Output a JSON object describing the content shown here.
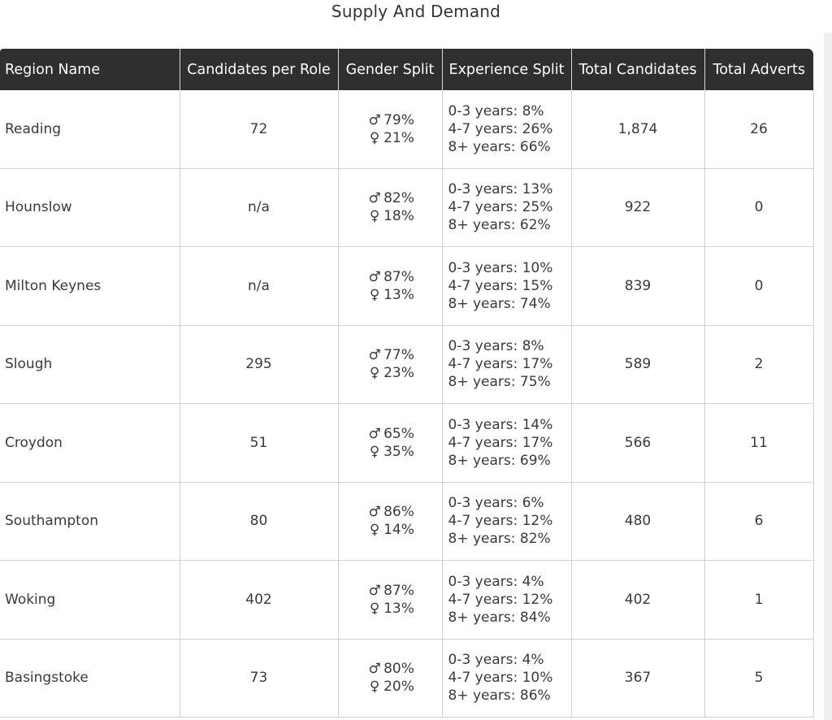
{
  "title": "Supply And Demand",
  "table": {
    "headers": [
      "Region Name",
      "Candidates per Role",
      "Gender Split",
      "Experience Split",
      "Total Candidates",
      "Total Adverts"
    ],
    "symbols": {
      "male": "♂",
      "female": "♀"
    },
    "rows": [
      {
        "region": "Reading",
        "cpr": "72",
        "male": "79%",
        "female": "21%",
        "exp": [
          "0-3 years: 8%",
          "4-7 years: 26%",
          "8+ years: 66%"
        ],
        "total": "1,874",
        "adverts": "26"
      },
      {
        "region": "Hounslow",
        "cpr": "n/a",
        "male": "82%",
        "female": "18%",
        "exp": [
          "0-3 years: 13%",
          "4-7 years: 25%",
          "8+ years: 62%"
        ],
        "total": "922",
        "adverts": "0"
      },
      {
        "region": "Milton Keynes",
        "cpr": "n/a",
        "male": "87%",
        "female": "13%",
        "exp": [
          "0-3 years: 10%",
          "4-7 years: 15%",
          "8+ years: 74%"
        ],
        "total": "839",
        "adverts": "0"
      },
      {
        "region": "Slough",
        "cpr": "295",
        "male": "77%",
        "female": "23%",
        "exp": [
          "0-3 years: 8%",
          "4-7 years: 17%",
          "8+ years: 75%"
        ],
        "total": "589",
        "adverts": "2"
      },
      {
        "region": "Croydon",
        "cpr": "51",
        "male": "65%",
        "female": "35%",
        "exp": [
          "0-3 years: 14%",
          "4-7 years: 17%",
          "8+ years: 69%"
        ],
        "total": "566",
        "adverts": "11"
      },
      {
        "region": "Southampton",
        "cpr": "80",
        "male": "86%",
        "female": "14%",
        "exp": [
          "0-3 years: 6%",
          "4-7 years: 12%",
          "8+ years: 82%"
        ],
        "total": "480",
        "adverts": "6"
      },
      {
        "region": "Woking",
        "cpr": "402",
        "male": "87%",
        "female": "13%",
        "exp": [
          "0-3 years: 4%",
          "4-7 years: 12%",
          "8+ years: 84%"
        ],
        "total": "402",
        "adverts": "1"
      },
      {
        "region": "Basingstoke",
        "cpr": "73",
        "male": "80%",
        "female": "20%",
        "exp": [
          "0-3 years: 4%",
          "4-7 years: 10%",
          "8+ years: 86%"
        ],
        "total": "367",
        "adverts": "5"
      }
    ]
  }
}
